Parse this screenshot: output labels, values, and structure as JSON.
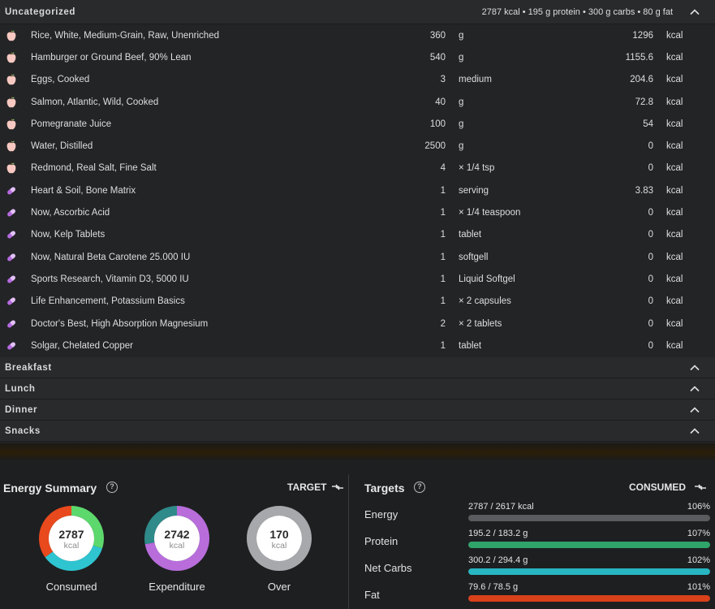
{
  "uncategorized": {
    "title": "Uncategorized",
    "summary": "2787 kcal • 195 g protein • 300 g carbs • 80 g fat",
    "items": [
      {
        "type": "food",
        "icon": "apple-icon",
        "name": "Rice, White, Medium-Grain, Raw, Unenriched",
        "amount": "360",
        "unit": "g",
        "kcal": "1296",
        "kcal_unit": "kcal"
      },
      {
        "type": "food",
        "icon": "apple-icon",
        "name": "Hamburger or Ground Beef, 90% Lean",
        "amount": "540",
        "unit": "g",
        "kcal": "1155.6",
        "kcal_unit": "kcal"
      },
      {
        "type": "food",
        "icon": "apple-icon",
        "name": "Eggs, Cooked",
        "amount": "3",
        "unit": "medium",
        "kcal": "204.6",
        "kcal_unit": "kcal"
      },
      {
        "type": "food",
        "icon": "apple-icon",
        "name": "Salmon, Atlantic, Wild, Cooked",
        "amount": "40",
        "unit": "g",
        "kcal": "72.8",
        "kcal_unit": "kcal"
      },
      {
        "type": "food",
        "icon": "apple-icon",
        "name": "Pomegranate Juice",
        "amount": "100",
        "unit": "g",
        "kcal": "54",
        "kcal_unit": "kcal"
      },
      {
        "type": "food",
        "icon": "apple-icon",
        "name": "Water, Distilled",
        "amount": "2500",
        "unit": "g",
        "kcal": "0",
        "kcal_unit": "kcal"
      },
      {
        "type": "food",
        "icon": "apple-icon",
        "name": "Redmond, Real Salt, Fine Salt",
        "amount": "4",
        "unit": "× 1/4 tsp",
        "kcal": "0",
        "kcal_unit": "kcal"
      },
      {
        "type": "supplement",
        "icon": "pill-icon",
        "name": "Heart & Soil, Bone Matrix",
        "amount": "1",
        "unit": "serving",
        "kcal": "3.83",
        "kcal_unit": "kcal"
      },
      {
        "type": "supplement",
        "icon": "pill-icon",
        "name": "Now, Ascorbic Acid",
        "amount": "1",
        "unit": "× 1/4 teaspoon",
        "kcal": "0",
        "kcal_unit": "kcal"
      },
      {
        "type": "supplement",
        "icon": "pill-icon",
        "name": "Now, Kelp Tablets",
        "amount": "1",
        "unit": "tablet",
        "kcal": "0",
        "kcal_unit": "kcal"
      },
      {
        "type": "supplement",
        "icon": "pill-icon",
        "name": "Now, Natural Beta Carotene 25.000 IU",
        "amount": "1",
        "unit": "softgell",
        "kcal": "0",
        "kcal_unit": "kcal"
      },
      {
        "type": "supplement",
        "icon": "pill-icon",
        "name": "Sports Research, Vitamin D3, 5000 IU",
        "amount": "1",
        "unit": "Liquid Softgel",
        "kcal": "0",
        "kcal_unit": "kcal"
      },
      {
        "type": "supplement",
        "icon": "pill-icon",
        "name": "Life Enhancement, Potassium Basics",
        "amount": "1",
        "unit": "× 2 capsules",
        "kcal": "0",
        "kcal_unit": "kcal"
      },
      {
        "type": "supplement",
        "icon": "pill-icon",
        "name": "Doctor's Best, High Absorption Magnesium",
        "amount": "2",
        "unit": "× 2 tablets",
        "kcal": "0",
        "kcal_unit": "kcal"
      },
      {
        "type": "supplement",
        "icon": "pill-icon",
        "name": "Solgar, Chelated Copper",
        "amount": "1",
        "unit": "tablet",
        "kcal": "0",
        "kcal_unit": "kcal"
      }
    ]
  },
  "meal_groups": [
    {
      "title": "Breakfast"
    },
    {
      "title": "Lunch"
    },
    {
      "title": "Dinner"
    },
    {
      "title": "Snacks"
    }
  ],
  "energy_summary": {
    "title": "Energy Summary",
    "toggle_label": "TARGET",
    "donuts": [
      {
        "label": "Consumed",
        "value": "2787",
        "unit": "kcal",
        "segments": [
          {
            "color": "#5dd86c",
            "fraction": 0.3
          },
          {
            "color": "#2ec4d0",
            "fraction": 0.35
          },
          {
            "color": "#e8491d",
            "fraction": 0.35
          }
        ]
      },
      {
        "label": "Expenditure",
        "value": "2742",
        "unit": "kcal",
        "segments": [
          {
            "color": "#b86ddb",
            "fraction": 0.72
          },
          {
            "color": "#2f8a8a",
            "fraction": 0.28
          }
        ]
      },
      {
        "label": "Over",
        "value": "170",
        "unit": "kcal",
        "segments": [
          {
            "color": "#a7a8ab",
            "fraction": 1.0
          }
        ]
      }
    ]
  },
  "targets": {
    "title": "Targets",
    "toggle_label": "CONSUMED",
    "rows": [
      {
        "label": "Energy",
        "value_text": "2787 / 2617 kcal",
        "percent_text": "106%",
        "fill": 1.0,
        "color": "#5a5b5e"
      },
      {
        "label": "Protein",
        "value_text": "195.2 / 183.2 g",
        "percent_text": "107%",
        "fill": 1.0,
        "color": "#2fa56a"
      },
      {
        "label": "Net Carbs",
        "value_text": "300.2 / 294.4 g",
        "percent_text": "102%",
        "fill": 1.0,
        "color": "#27b6c2"
      },
      {
        "label": "Fat",
        "value_text": "79.6 / 78.5 g",
        "percent_text": "101%",
        "fill": 1.0,
        "color": "#d8411a"
      }
    ]
  }
}
